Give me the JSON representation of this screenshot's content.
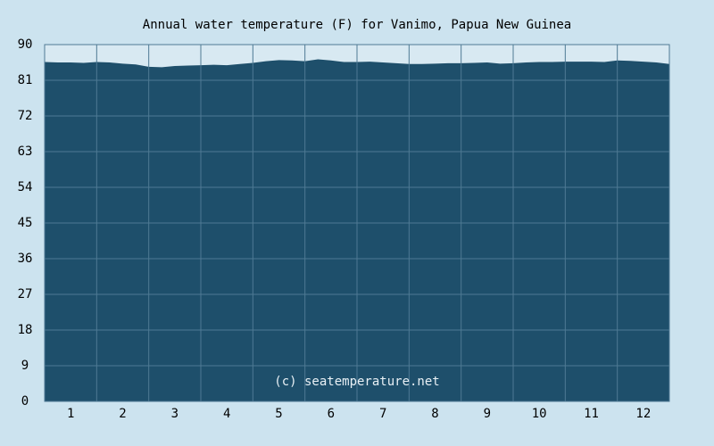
{
  "chart_data": {
    "type": "area",
    "title": "Annual water temperature (F) for Vanimo, Papua New Guinea",
    "annotation": "(c) seatemperature.net",
    "x": [
      0.5,
      0.75,
      1,
      1.25,
      1.5,
      1.75,
      2,
      2.25,
      2.5,
      2.75,
      3,
      3.25,
      3.5,
      3.75,
      4,
      4.25,
      4.5,
      4.75,
      5,
      5.25,
      5.5,
      5.75,
      6,
      6.25,
      6.5,
      6.75,
      7,
      7.25,
      7.5,
      7.75,
      8,
      8.25,
      8.5,
      8.75,
      9,
      9.25,
      9.5,
      9.75,
      10,
      10.25,
      10.5,
      10.75,
      11,
      11.25,
      11.5,
      11.75,
      12,
      12.25,
      12.5
    ],
    "values": [
      85.6,
      85.5,
      85.5,
      85.4,
      85.6,
      85.5,
      85.2,
      85.0,
      84.4,
      84.3,
      84.6,
      84.7,
      84.8,
      84.9,
      84.8,
      85.1,
      85.4,
      85.8,
      86.1,
      86.0,
      85.8,
      86.3,
      86.0,
      85.6,
      85.6,
      85.7,
      85.5,
      85.3,
      85.1,
      85.1,
      85.2,
      85.3,
      85.3,
      85.4,
      85.5,
      85.2,
      85.3,
      85.5,
      85.6,
      85.6,
      85.7,
      85.7,
      85.7,
      85.6,
      86.0,
      85.9,
      85.7,
      85.5,
      85.1
    ],
    "color": "#1e4f6b",
    "xlim": [
      0.5,
      12.5
    ],
    "xticks": [
      1,
      2,
      3,
      4,
      5,
      6,
      7,
      8,
      9,
      10,
      11,
      12
    ],
    "ylim": [
      0,
      90
    ],
    "yticks": [
      0,
      9,
      18,
      27,
      36,
      45,
      54,
      63,
      72,
      81,
      90
    ],
    "grid": true
  }
}
